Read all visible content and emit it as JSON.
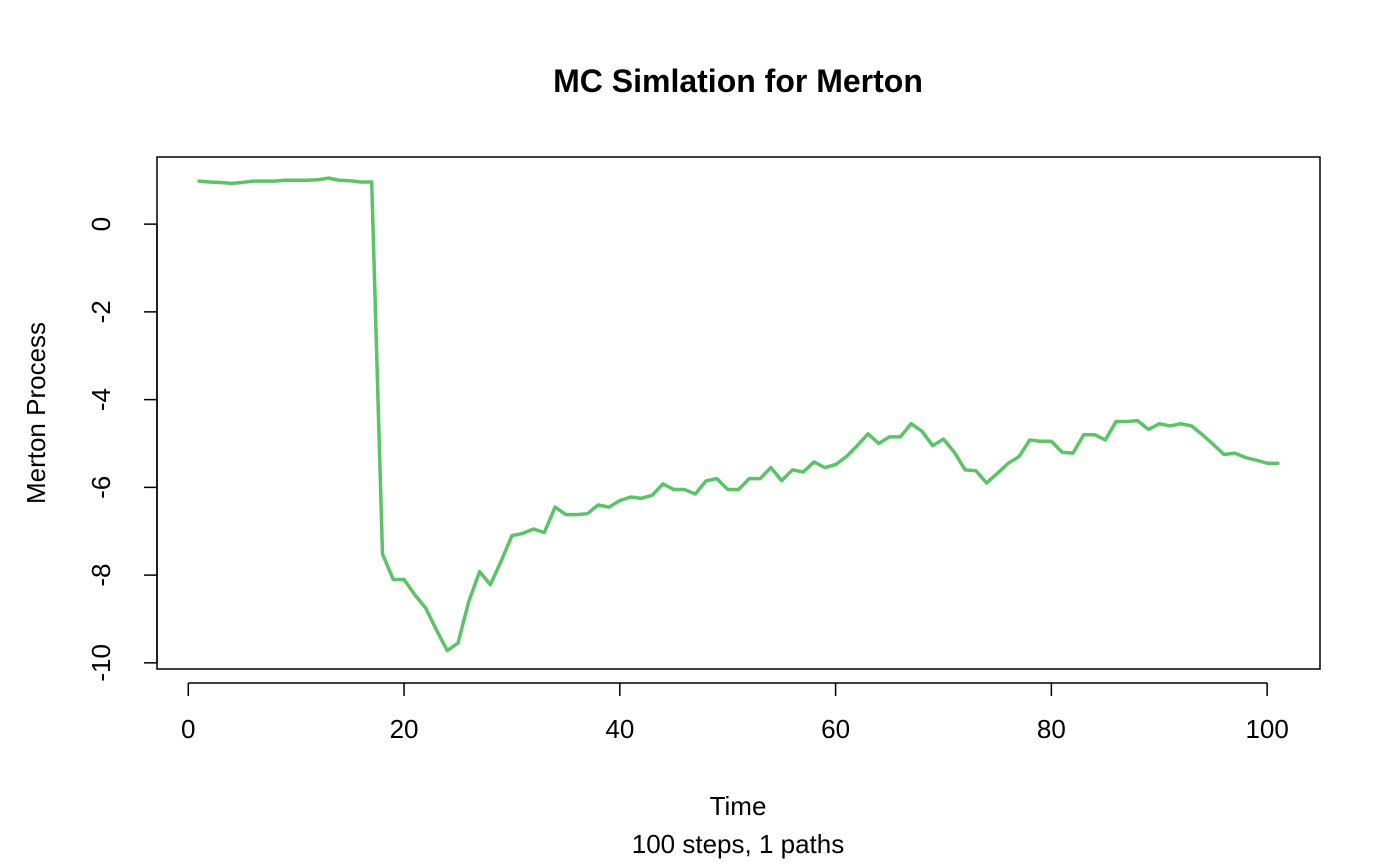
{
  "chart_data": {
    "type": "line",
    "title": "MC Simlation for Merton",
    "xlabel": "Time",
    "xlabel_sub": "100 steps, 1 paths",
    "ylabel": "Merton Process",
    "xlim": [
      -2.9,
      104.9
    ],
    "ylim": [
      -10.14,
      1.53
    ],
    "xticks": [
      0,
      20,
      40,
      60,
      80,
      100
    ],
    "yticks": [
      0,
      -2,
      -4,
      -6,
      -8,
      -10
    ],
    "grid": false,
    "series_color": "#5ac466",
    "series": [
      {
        "x": [
          1,
          2,
          3,
          4,
          5,
          6,
          7,
          8,
          9,
          10,
          11,
          12,
          13,
          14,
          15,
          16,
          17,
          18,
          19,
          20,
          21,
          22,
          23,
          24,
          25,
          26,
          27,
          28,
          29,
          30,
          31,
          32,
          33,
          34,
          35,
          36,
          37,
          38,
          39,
          40,
          41,
          42,
          43,
          44,
          45,
          46,
          47,
          48,
          49,
          50,
          51,
          52,
          53,
          54,
          55,
          56,
          57,
          58,
          59,
          60,
          61,
          62,
          63,
          64,
          65,
          66,
          67,
          68,
          69,
          70,
          71,
          72,
          73,
          74,
          75,
          76,
          77,
          78,
          79,
          80,
          81,
          82,
          83,
          84,
          85,
          86,
          87,
          88,
          89,
          90,
          91,
          92,
          93,
          94,
          95,
          96,
          97,
          98,
          99,
          100,
          101
        ],
        "values": [
          0.98,
          0.96,
          0.95,
          0.93,
          0.95,
          0.98,
          0.98,
          0.98,
          1.0,
          1.0,
          1.0,
          1.01,
          1.05,
          1.0,
          0.99,
          0.96,
          0.96,
          -7.52,
          -8.1,
          -8.1,
          -8.45,
          -8.75,
          -9.25,
          -9.72,
          -9.55,
          -8.6,
          -7.92,
          -8.22,
          -7.68,
          -7.1,
          -7.05,
          -6.95,
          -7.03,
          -6.45,
          -6.62,
          -6.62,
          -6.6,
          -6.4,
          -6.45,
          -6.3,
          -6.22,
          -6.25,
          -6.18,
          -5.92,
          -6.05,
          -6.05,
          -6.15,
          -5.85,
          -5.8,
          -6.05,
          -6.05,
          -5.8,
          -5.8,
          -5.55,
          -5.85,
          -5.6,
          -5.65,
          -5.42,
          -5.55,
          -5.48,
          -5.3,
          -5.05,
          -4.78,
          -5.0,
          -4.85,
          -4.85,
          -4.55,
          -4.72,
          -5.05,
          -4.9,
          -5.2,
          -5.6,
          -5.62,
          -5.9,
          -5.68,
          -5.45,
          -5.3,
          -4.92,
          -4.95,
          -4.95,
          -5.2,
          -5.22,
          -4.8,
          -4.8,
          -4.92,
          -4.5,
          -4.5,
          -4.48,
          -4.68,
          -4.55,
          -4.6,
          -4.55,
          -4.6,
          -4.8,
          -5.02,
          -5.25,
          -5.22,
          -5.32,
          -5.38,
          -5.45,
          -5.45
        ]
      }
    ]
  }
}
